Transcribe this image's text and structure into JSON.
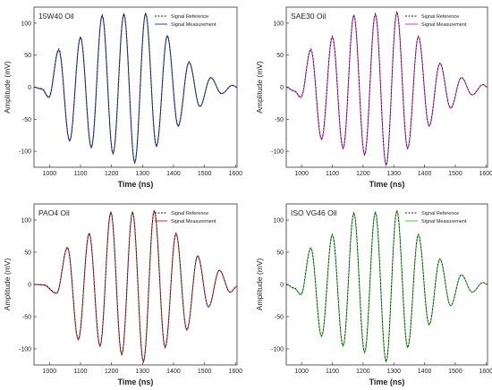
{
  "chart_data": [
    {
      "type": "line",
      "title": "15W40 Oil",
      "xlabel": "Time (ns)",
      "ylabel": "Amplitude (mV)",
      "xlim": [
        950,
        1605
      ],
      "ylim": [
        -125,
        125
      ],
      "xticks": [
        1000,
        1100,
        1200,
        1300,
        1400,
        1500,
        1600
      ],
      "yticks": [
        -100,
        -50,
        0,
        50,
        100
      ],
      "grid": false,
      "legend_position": "top-right",
      "colors": {
        "reference": "#1a1a1a",
        "measurement": "#2b3fb0"
      },
      "series": [
        {
          "name": "Signal Reference",
          "style": "dashed",
          "x": [
            950,
            975,
            998,
            1030,
            1065,
            1100,
            1135,
            1170,
            1205,
            1240,
            1275,
            1310,
            1345,
            1380,
            1415,
            1450,
            1485,
            1520,
            1555,
            1590,
            1605
          ],
          "y": [
            0,
            -2,
            -15,
            60,
            -83,
            79,
            -95,
            113,
            -103,
            115,
            -118,
            116,
            -93,
            81,
            -60,
            40,
            -30,
            15,
            -10,
            3,
            0
          ]
        },
        {
          "name": "Signal Measurement",
          "style": "solid",
          "x": [
            950,
            975,
            998,
            1030,
            1065,
            1100,
            1135,
            1170,
            1205,
            1240,
            1275,
            1310,
            1345,
            1380,
            1415,
            1450,
            1485,
            1520,
            1555,
            1590,
            1605
          ],
          "y": [
            0,
            -3,
            -16,
            58,
            -84,
            78,
            -94,
            112,
            -104,
            114,
            -118,
            115,
            -92,
            80,
            -61,
            39,
            -30,
            15,
            -10,
            3,
            0
          ]
        }
      ]
    },
    {
      "type": "line",
      "title": "SAE30 Oil",
      "xlabel": "Time (ns)",
      "ylabel": "Amplitude (mV)",
      "xlim": [
        950,
        1605
      ],
      "ylim": [
        -125,
        125
      ],
      "xticks": [
        1000,
        1100,
        1200,
        1300,
        1400,
        1500,
        1600
      ],
      "yticks": [
        -100,
        -50,
        0,
        50,
        100
      ],
      "grid": false,
      "legend_position": "top-right",
      "colors": {
        "reference": "#1a1a1a",
        "measurement": "#d633cf"
      },
      "series": [
        {
          "name": "Signal Reference",
          "style": "dashed",
          "x": [
            950,
            975,
            998,
            1030,
            1065,
            1100,
            1135,
            1170,
            1205,
            1240,
            1275,
            1310,
            1345,
            1380,
            1415,
            1450,
            1485,
            1520,
            1555,
            1590,
            1605
          ],
          "y": [
            0,
            -5,
            -15,
            60,
            -80,
            80,
            -95,
            113,
            -105,
            115,
            -122,
            118,
            -95,
            80,
            -60,
            38,
            -32,
            15,
            -12,
            4,
            0
          ]
        },
        {
          "name": "Signal Measurement",
          "style": "solid",
          "x": [
            950,
            975,
            998,
            1030,
            1065,
            1100,
            1135,
            1170,
            1205,
            1240,
            1275,
            1310,
            1345,
            1380,
            1415,
            1450,
            1485,
            1520,
            1555,
            1590,
            1605
          ],
          "y": [
            0,
            -6,
            -16,
            58,
            -82,
            78,
            -96,
            112,
            -106,
            114,
            -122,
            117,
            -96,
            79,
            -61,
            37,
            -33,
            15,
            -12,
            4,
            0
          ]
        }
      ]
    },
    {
      "type": "line",
      "title": "PAO4 Oil",
      "xlabel": "Time (ns)",
      "ylabel": "Amplitude (mV)",
      "xlim": [
        950,
        1605
      ],
      "ylim": [
        -125,
        125
      ],
      "xticks": [
        1000,
        1100,
        1200,
        1300,
        1400,
        1500,
        1600
      ],
      "yticks": [
        -100,
        -50,
        0,
        50,
        100
      ],
      "grid": false,
      "legend_position": "top-right",
      "colors": {
        "reference": "#1a1a1a",
        "measurement": "#c23232"
      },
      "series": [
        {
          "name": "Signal Reference",
          "style": "dashed",
          "x": [
            950,
            980,
            1023,
            1058,
            1093,
            1128,
            1163,
            1198,
            1233,
            1268,
            1303,
            1338,
            1373,
            1408,
            1443,
            1478,
            1513,
            1548,
            1583,
            1605
          ],
          "y": [
            0,
            0,
            -13,
            58,
            -85,
            80,
            -95,
            113,
            -108,
            113,
            -120,
            115,
            -98,
            80,
            -70,
            45,
            -35,
            22,
            -12,
            -3
          ]
        },
        {
          "name": "Signal Measurement",
          "style": "solid",
          "x": [
            950,
            980,
            1023,
            1058,
            1093,
            1128,
            1163,
            1198,
            1233,
            1268,
            1303,
            1338,
            1373,
            1408,
            1443,
            1478,
            1513,
            1548,
            1583,
            1605
          ],
          "y": [
            0,
            -1,
            -14,
            57,
            -86,
            79,
            -96,
            112,
            -109,
            112,
            -120,
            114,
            -98,
            79,
            -71,
            44,
            -35,
            22,
            -12,
            -3
          ]
        }
      ]
    },
    {
      "type": "line",
      "title": "ISO VG46 Oil",
      "xlabel": "Time (ns)",
      "ylabel": "Amplitude (mV)",
      "xlim": [
        950,
        1605
      ],
      "ylim": [
        -125,
        125
      ],
      "xticks": [
        1000,
        1100,
        1200,
        1300,
        1400,
        1500,
        1600
      ],
      "yticks": [
        -100,
        -50,
        0,
        50,
        100
      ],
      "grid": false,
      "legend_position": "top-right",
      "colors": {
        "reference": "#1a1a1a",
        "measurement": "#3ccf3c"
      },
      "series": [
        {
          "name": "Signal Reference",
          "style": "dashed",
          "x": [
            950,
            975,
            998,
            1030,
            1065,
            1100,
            1135,
            1170,
            1205,
            1240,
            1275,
            1310,
            1345,
            1380,
            1415,
            1450,
            1485,
            1520,
            1555,
            1590,
            1605
          ],
          "y": [
            0,
            -5,
            -15,
            57,
            -80,
            78,
            -95,
            112,
            -105,
            113,
            -120,
            115,
            -98,
            78,
            -62,
            40,
            -33,
            15,
            -12,
            3,
            0
          ]
        },
        {
          "name": "Signal Measurement",
          "style": "solid",
          "x": [
            950,
            975,
            998,
            1030,
            1065,
            1100,
            1135,
            1170,
            1205,
            1240,
            1275,
            1310,
            1345,
            1380,
            1415,
            1450,
            1485,
            1520,
            1555,
            1590,
            1605
          ],
          "y": [
            0,
            -6,
            -16,
            56,
            -81,
            77,
            -96,
            111,
            -106,
            112,
            -120,
            114,
            -98,
            77,
            -63,
            39,
            -33,
            15,
            -12,
            3,
            0
          ]
        }
      ]
    }
  ]
}
